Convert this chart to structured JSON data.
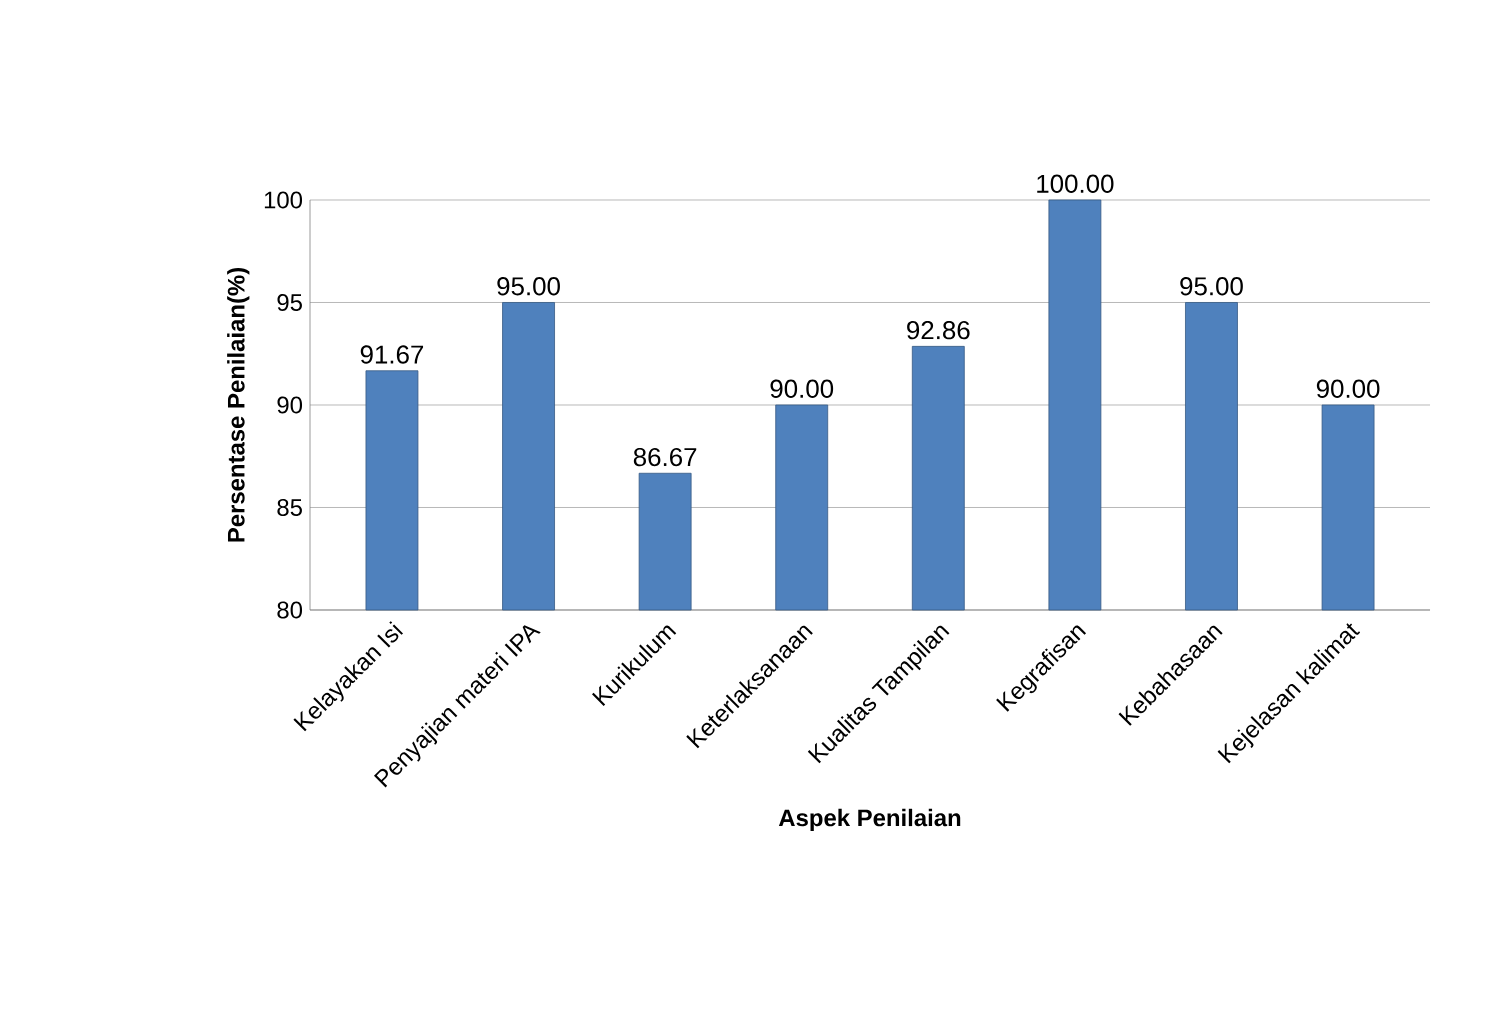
{
  "chart_data": {
    "type": "bar",
    "xlabel": "Aspek Penilaian",
    "ylabel": "Persentase Penilaian(%)",
    "categories": [
      "Kelayakan Isi",
      "Penyajian materi IPA",
      "Kurikulum",
      "Keterlaksanaan",
      "Kualitas Tampilan",
      "Kegrafisan",
      "Kebahasaan",
      "Kejelasan kalimat"
    ],
    "values": [
      91.67,
      95.0,
      86.67,
      90.0,
      92.86,
      100.0,
      95.0,
      90.0
    ],
    "value_labels": [
      "91.67",
      "95.00",
      "86.67",
      "90.00",
      "92.86",
      "100.00",
      "95.00",
      "90.00"
    ],
    "color": "#4f81bd",
    "ylim": [
      80,
      100
    ],
    "yticks": [
      80,
      85,
      90,
      95,
      100
    ],
    "grid": "y"
  }
}
